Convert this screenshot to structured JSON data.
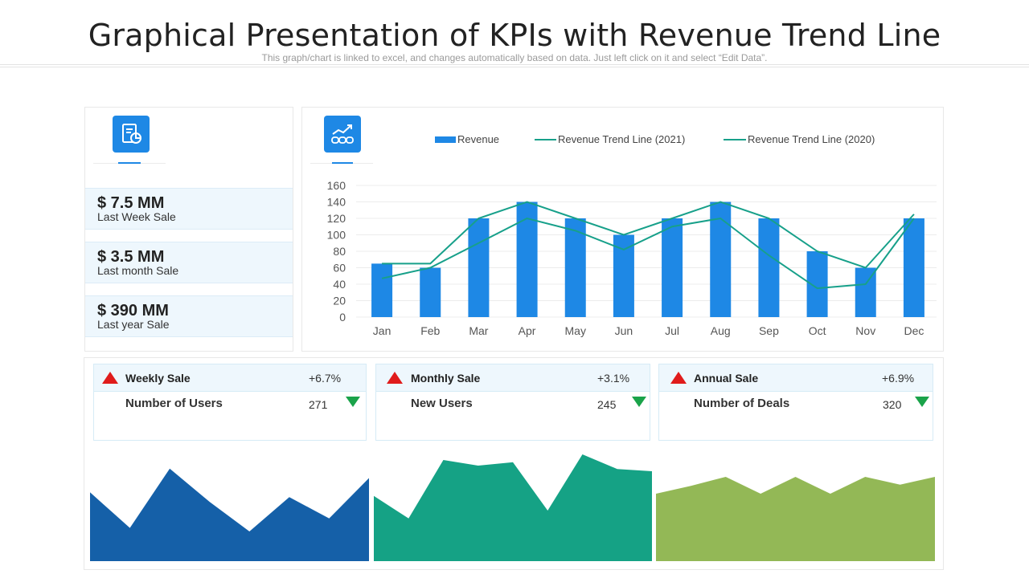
{
  "header": {
    "title": "Graphical Presentation of KPIs with Revenue Trend Line",
    "subtitle": "This graph/chart is linked to excel, and changes automatically based on data. Just left click on it and select “Edit Data”."
  },
  "kpis": [
    {
      "value": "$ 7.5 MM",
      "label": "Last Week Sale"
    },
    {
      "value": "$ 3.5 MM",
      "label": "Last month Sale"
    },
    {
      "value": "$ 390 MM",
      "label": "Last year Sale"
    }
  ],
  "icons": {
    "left": "report-chart-icon",
    "chart": "revenue-growth-icon"
  },
  "stats": [
    {
      "title": "Weekly Sale",
      "pct": "+6.7%",
      "sub": "Number of Users",
      "num": "271"
    },
    {
      "title": "Monthly Sale",
      "pct": "+3.1%",
      "sub": "New Users",
      "num": "245"
    },
    {
      "title": "Annual Sale",
      "pct": "+6.9%",
      "sub": "Number of Deals",
      "num": "320"
    }
  ],
  "colors": {
    "bar": "#1e88e5",
    "trend": "#17a08a",
    "area_blue": "#1560a8",
    "area_teal": "#15a285",
    "area_green": "#93b856",
    "up": "#e01b1b",
    "down": "#1aa34a"
  },
  "chart_data": [
    {
      "type": "bar",
      "categories": [
        "Jan",
        "Feb",
        "Mar",
        "Apr",
        "May",
        "Jun",
        "Jul",
        "Aug",
        "Sep",
        "Oct",
        "Nov",
        "Dec"
      ],
      "series": [
        {
          "name": "Revenue",
          "kind": "bar",
          "values": [
            65,
            60,
            120,
            140,
            120,
            100,
            120,
            140,
            120,
            80,
            60,
            120
          ]
        },
        {
          "name": "Revenue Trend Line (2021)",
          "kind": "line",
          "values": [
            65,
            65,
            120,
            140,
            120,
            100,
            120,
            140,
            120,
            80,
            60,
            125
          ]
        },
        {
          "name": "Revenue Trend Line (2020)",
          "kind": "line",
          "values": [
            47,
            60,
            90,
            120,
            105,
            82,
            110,
            120,
            75,
            35,
            40,
            120
          ]
        }
      ],
      "yticks": [
        0,
        20,
        40,
        60,
        80,
        100,
        120,
        140,
        160
      ],
      "ylim": [
        0,
        160
      ],
      "legend": "top"
    },
    {
      "type": "area",
      "name": "weekly-area",
      "values": [
        58,
        28,
        78,
        50,
        25,
        54,
        36,
        70
      ],
      "ylim": [
        0,
        90
      ]
    },
    {
      "type": "area",
      "name": "monthly-area",
      "values": [
        58,
        38,
        90,
        85,
        88,
        45,
        95,
        82,
        80
      ],
      "ylim": [
        0,
        95
      ]
    },
    {
      "type": "area",
      "name": "annual-area",
      "values": [
        60,
        67,
        75,
        60,
        75,
        60,
        75,
        68,
        75
      ],
      "ylim": [
        0,
        95
      ]
    }
  ]
}
